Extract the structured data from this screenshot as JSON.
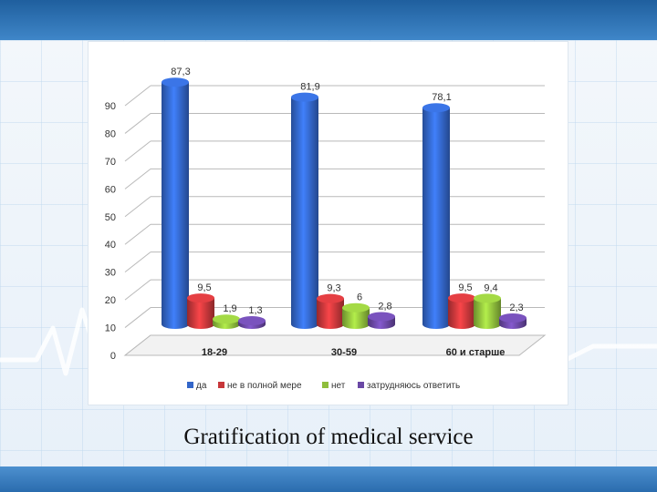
{
  "caption": "Gratification of medical service",
  "chart_data": {
    "type": "bar",
    "title": "",
    "xlabel": "",
    "ylabel": "",
    "ylim": [
      0,
      90
    ],
    "yticks": [
      0,
      10,
      20,
      30,
      40,
      50,
      60,
      70,
      80,
      90
    ],
    "categories": [
      "18-29",
      "30-59",
      "60 и старше"
    ],
    "series": [
      {
        "name": "да",
        "color": "#3366c9",
        "values": [
          87.3,
          81.9,
          78.1
        ],
        "labels": [
          "87,3",
          "81,9",
          "78,1"
        ]
      },
      {
        "name": "не в полной мере",
        "color": "#c7373a",
        "values": [
          9.5,
          9.3,
          9.5
        ],
        "labels": [
          "9,5",
          "9,3",
          "9,5"
        ]
      },
      {
        "name": "нет",
        "color": "#8fbe3c",
        "values": [
          1.9,
          6,
          9.4
        ],
        "labels": [
          "1,9",
          "6",
          "9,4"
        ]
      },
      {
        "name": "затрудняюсь ответить",
        "color": "#6a48a5",
        "values": [
          1.3,
          2.8,
          2.3
        ],
        "labels": [
          "1,3",
          "2,8",
          "2,3"
        ]
      }
    ],
    "grid": true,
    "legend_position": "bottom"
  }
}
